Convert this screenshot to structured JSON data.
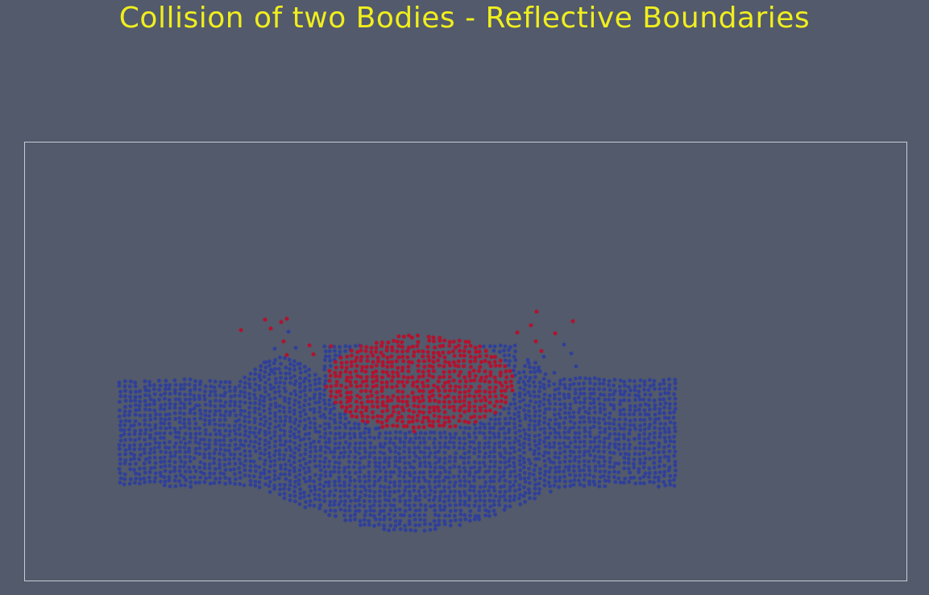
{
  "title": "Collision of two Bodies - Reflective Boundaries",
  "colors": {
    "background": "#525a6b",
    "title": "#f0ee1e",
    "boundary": "#c9ccd6",
    "body_lower": "#2f3f9a",
    "body_upper": "#b3122f"
  }
}
